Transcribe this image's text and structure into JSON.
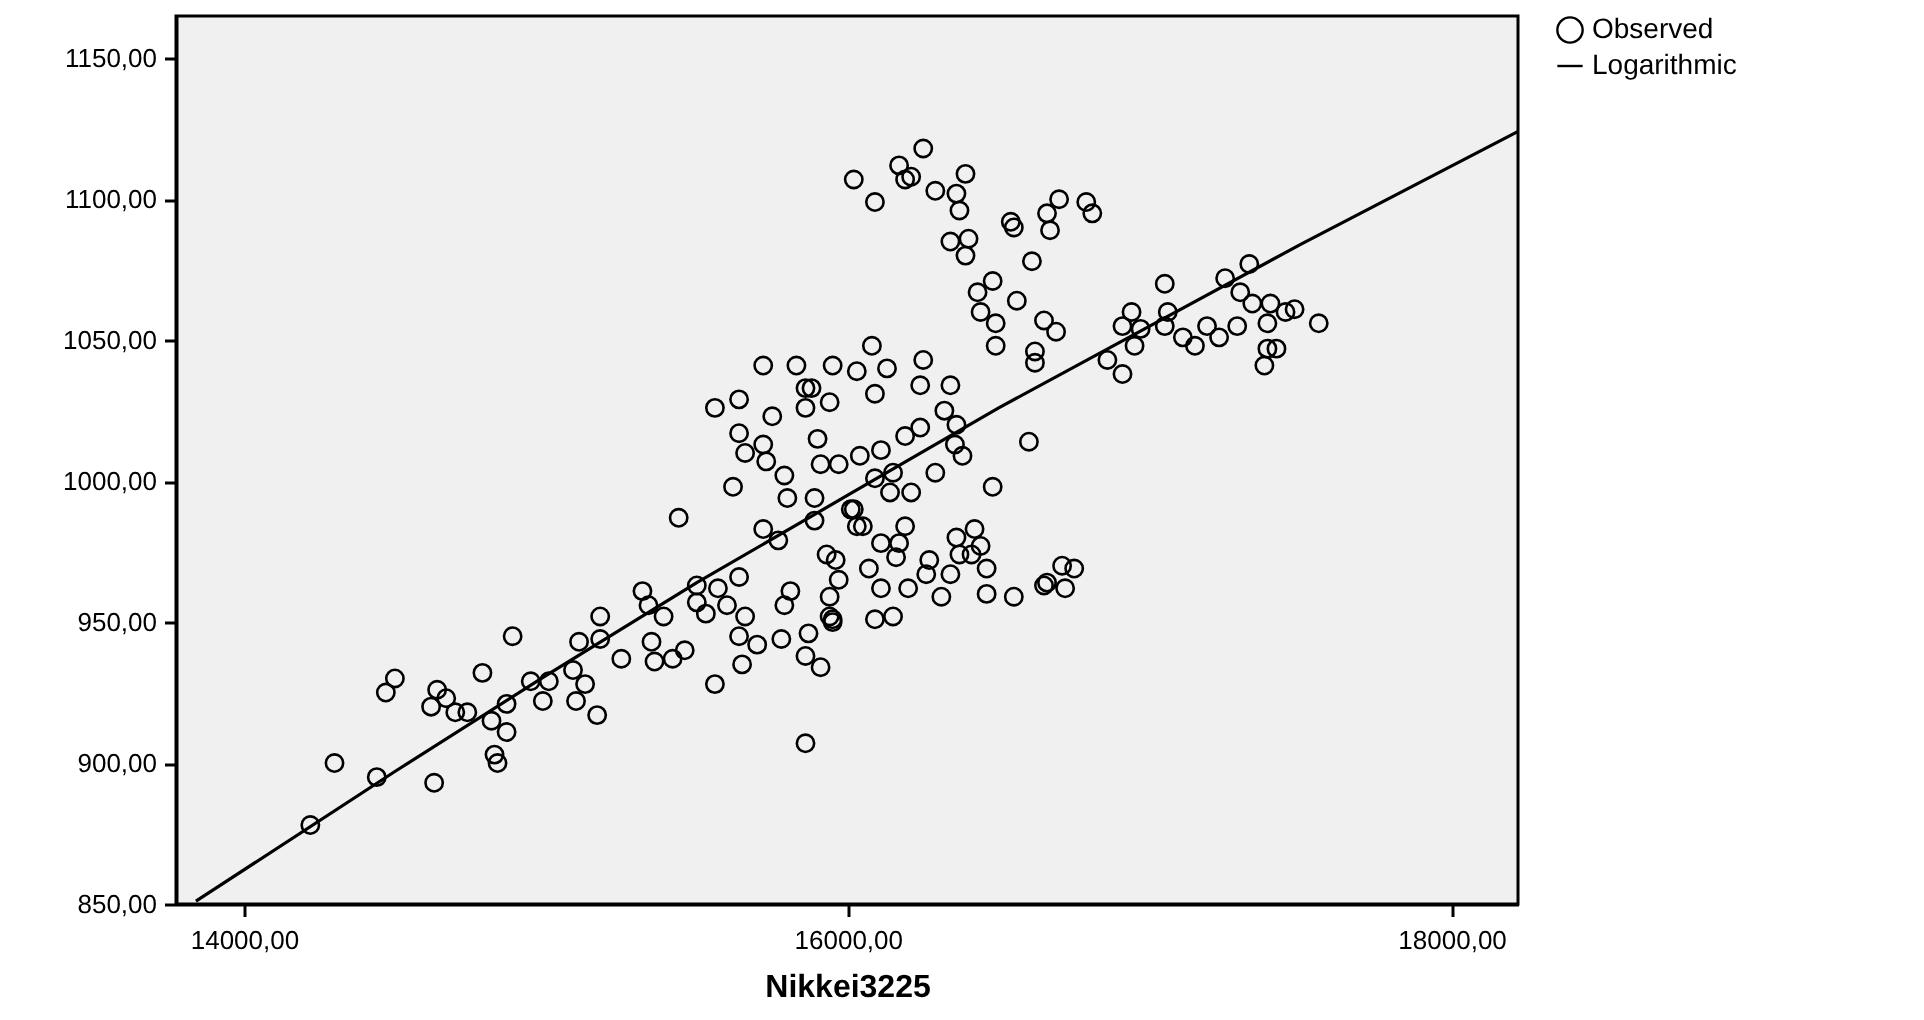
{
  "chart_data": {
    "type": "scatter",
    "xlabel": "Nikkei3225",
    "xlim": [
      13775,
      18220
    ],
    "ylim": [
      850,
      1165
    ],
    "xticks": [
      {
        "value": 14000,
        "label": "14000,00"
      },
      {
        "value": 16000,
        "label": "16000,00"
      },
      {
        "value": 18000,
        "label": "18000,00"
      }
    ],
    "yticks": [
      {
        "value": 850,
        "label": "850,00"
      },
      {
        "value": 900,
        "label": "900,00"
      },
      {
        "value": 950,
        "label": "950,00"
      },
      {
        "value": 1000,
        "label": "1000,00"
      },
      {
        "value": 1050,
        "label": "1050,00"
      },
      {
        "value": 1100,
        "label": "1100,00"
      },
      {
        "value": 1150,
        "label": "1150,00"
      }
    ],
    "grid": false,
    "legend": "top right",
    "series": [
      {
        "name": "Observed",
        "marker": "circle",
        "color": "#000000",
        "x": [
          14220,
          14300,
          14440,
          14630,
          14470,
          14500,
          14640,
          14620,
          14670,
          14700,
          14740,
          14790,
          14820,
          14870,
          14890,
          14870,
          14840,
          14830,
          14950,
          14990,
          15010,
          15090,
          15100,
          15130,
          15110,
          15180,
          15170,
          15180,
          15250,
          15320,
          15340,
          15390,
          15350,
          15360,
          15420,
          15440,
          15460,
          15500,
          15500,
          15530,
          15570,
          15560,
          15600,
          15620,
          15640,
          15660,
          15640,
          15650,
          15700,
          15720,
          15770,
          15780,
          15800,
          15790,
          15810,
          15790,
          15860,
          15860,
          15870,
          15910,
          15890,
          15890,
          15930,
          15940,
          15960,
          15970,
          15950,
          16020,
          16480,
          16290,
          16190,
          16170,
          16110,
          16160,
          16200,
          16110,
          16090,
          16150,
          15940,
          15950,
          16030,
          16010,
          16050,
          16070,
          16270,
          16260,
          16310,
          16340,
          16360,
          16370,
          16420,
          16440,
          16460,
          16410,
          16460,
          16550,
          16650,
          16660,
          16710,
          16750,
          16720,
          16140,
          16210,
          16090,
          16150,
          16250,
          16170,
          16190,
          16210,
          16020,
          16090,
          16290,
          16390,
          16360,
          16370,
          16340,
          16400,
          16390,
          16540,
          16550,
          16660,
          16700,
          16670,
          16790,
          16810,
          16610,
          16480,
          16430,
          16560,
          16440,
          16490,
          16650,
          16690,
          16490,
          16620,
          16620,
          17050,
          16940,
          16910,
          16970,
          17060,
          17050,
          16950,
          16860,
          16910,
          17110,
          17150,
          17190,
          17230,
          17290,
          17250,
          17330,
          17300,
          17340,
          17400,
          17390,
          17450,
          17480,
          17560,
          17390,
          17420,
          17380,
          16080,
          15950,
          16030,
          16130,
          16250,
          16090,
          16240,
          16340,
          15880,
          15940,
          15860,
          16320,
          16360,
          16240,
          16190,
          15900,
          16600,
          16355,
          16380,
          16110,
          16040,
          15910,
          15970,
          15720,
          15830,
          15860,
          15640,
          15560,
          15750,
          15640,
          15720,
          15660,
          15730
        ],
        "values": [
          878,
          900,
          895,
          893,
          925,
          930,
          926,
          920,
          923,
          918,
          918,
          932,
          915,
          921,
          945,
          911,
          900,
          903,
          929,
          922,
          929,
          933,
          922,
          928,
          943,
          952,
          917,
          944,
          937,
          961,
          956,
          952,
          943,
          936,
          937,
          987,
          940,
          963,
          957,
          953,
          962,
          928,
          956,
          998,
          966,
          952,
          945,
          935,
          942,
          983,
          979,
          944,
          994,
          1002,
          961,
          956,
          907,
          938,
          946,
          934,
          994,
          986,
          974,
          952,
          972,
          965,
          951,
          990,
          998,
          1003,
          984,
          978,
          978,
          973,
          962,
          962,
          951,
          952,
          959,
          950,
          984,
          990,
          984,
          969,
          972,
          967,
          959,
          967,
          980,
          974,
          983,
          977,
          969,
          974,
          960,
          959,
          963,
          964,
          970,
          969,
          962,
          996,
          996,
          1001,
          1003,
          1118,
          1112,
          1107,
          1108,
          1107,
          1099,
          1103,
          1109,
          1102,
          1096,
          1085,
          1086,
          1080,
          1092,
          1090,
          1095,
          1100,
          1089,
          1099,
          1095,
          1078,
          1071,
          1067,
          1064,
          1060,
          1056,
          1057,
          1053,
          1048,
          1046,
          1042,
          1070,
          1060,
          1055,
          1054,
          1060,
          1055,
          1048,
          1043,
          1038,
          1051,
          1048,
          1055,
          1051,
          1055,
          1072,
          1077,
          1067,
          1063,
          1063,
          1056,
          1060,
          1061,
          1056,
          1047,
          1047,
          1041,
          1048,
          1041,
          1039,
          1040,
          1043,
          1031,
          1034,
          1034,
          1033,
          1028,
          1026,
          1025,
          1020,
          1019,
          1016,
          1015,
          1014,
          1013,
          1009,
          1011,
          1009,
          1006,
          1006,
          1041,
          1041,
          1033,
          1029,
          1026,
          1023,
          1017,
          1013,
          1010,
          1007
        ]
      },
      {
        "name": "Logarithmic",
        "type": "line",
        "marker": "none",
        "color": "#000000",
        "line_style": "solid",
        "x": [
          13841,
          14500,
          15000,
          15500,
          16000,
          16500,
          17000,
          17500,
          18219
        ],
        "values": [
          851,
          897,
          931,
          964,
          995,
          1026,
          1055,
          1084,
          1124
        ]
      }
    ]
  }
}
